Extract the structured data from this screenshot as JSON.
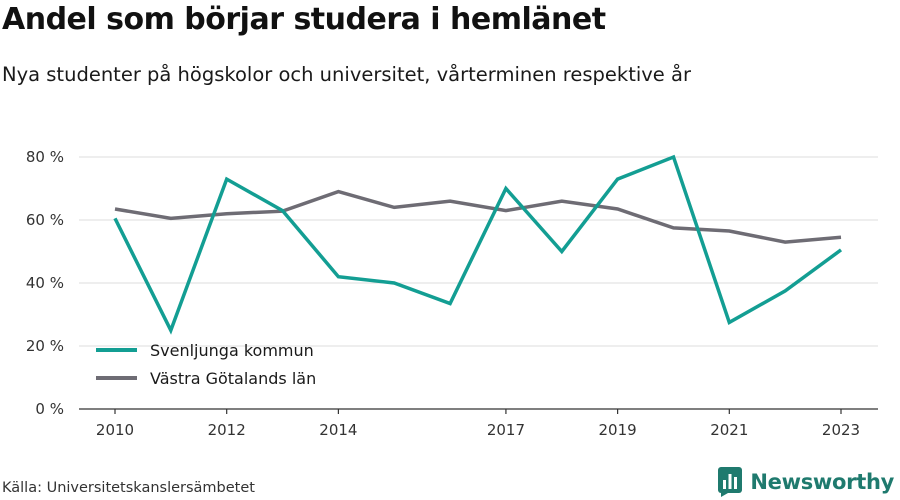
{
  "header": {
    "title": "Andel som börjar studera i hemlänet",
    "subtitle": "Nya studenter på högskolor och universitet, vårterminen respektive år"
  },
  "footer": {
    "source": "Källa: Universitetskanslersämbetet",
    "brand": "Newsworthy"
  },
  "colors": {
    "series_1": "#139e93",
    "series_2": "#6e6c74",
    "grid": "#dcdcdc",
    "axis": "#333333",
    "brand": "#1f7a6e"
  },
  "icons": {
    "brand": "newsworthy-logo-icon"
  },
  "chart_data": {
    "type": "line",
    "title": "Andel som börjar studera i hemlänet",
    "subtitle": "Nya studenter på högskolor och universitet, vårterminen respektive år",
    "x": [
      2010,
      2011,
      2012,
      2013,
      2014,
      2015,
      2016,
      2017,
      2018,
      2019,
      2020,
      2021,
      2022,
      2023
    ],
    "x_ticks": [
      "2010",
      "2012",
      "2014",
      "2017",
      "2019",
      "2021",
      "2023"
    ],
    "y_ticks": [
      "0 %",
      "20 %",
      "40 %",
      "60 %",
      "80 %"
    ],
    "ylim": [
      0,
      80
    ],
    "grid": true,
    "legend_position": "bottom-left",
    "series": [
      {
        "name": "Svenljunga kommun",
        "values": [
          60.5,
          25,
          73,
          63,
          42,
          40,
          33.5,
          70,
          50,
          73,
          80,
          27.5,
          37.5,
          50.5
        ]
      },
      {
        "name": "Västra Götalands län",
        "values": [
          63.5,
          60.5,
          62,
          62.8,
          69,
          64,
          66,
          63,
          66,
          63.5,
          57.5,
          56.5,
          53,
          54.5
        ]
      }
    ]
  }
}
